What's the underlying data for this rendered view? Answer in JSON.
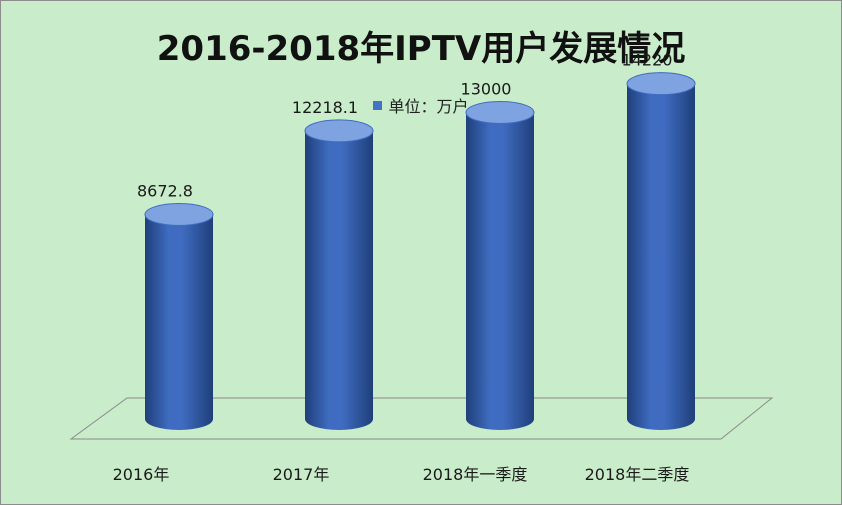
{
  "chart_data": {
    "type": "bar",
    "title": "2016-2018年IPTV用户发展情况",
    "legend": {
      "label": "单位：万户",
      "placement": "top-center",
      "color": "#4472c4"
    },
    "categories": [
      "2016年",
      "2017年",
      "2018年一季度",
      "2018年二季度"
    ],
    "series": [
      {
        "name": "单位：万户",
        "values": [
          8672.8,
          12218.1,
          13000,
          14220
        ]
      }
    ],
    "data_labels": [
      "8672.8",
      "12218.1",
      "13000",
      "14220"
    ],
    "ylim": [
      0,
      16000
    ],
    "grid": false,
    "style": "3d-cylinder"
  },
  "colors": {
    "background": "#c9ecca",
    "bar_dark": "#1f3f7a",
    "bar_mid": "#3f6cc0",
    "bar_light": "#7ea3e0",
    "floor_line": "#8a8a8a"
  }
}
